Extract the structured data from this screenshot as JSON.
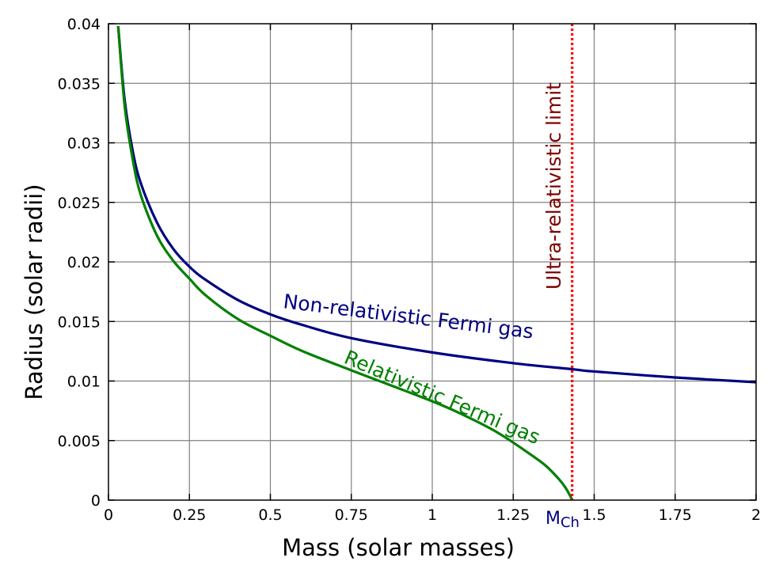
{
  "chart_data": {
    "type": "line",
    "xlabel": "Mass (solar masses)",
    "ylabel": "Radius (solar radii)",
    "xlim": [
      0,
      2
    ],
    "ylim": [
      0,
      0.04
    ],
    "x_ticks": [
      0,
      0.25,
      0.5,
      0.75,
      1,
      1.25,
      1.5,
      1.75,
      2
    ],
    "x_tick_labels": [
      "0",
      "0.25",
      "0.5",
      "0.75",
      "1",
      "1.25",
      "1.5",
      "1.75",
      "2"
    ],
    "y_ticks": [
      0,
      0.005,
      0.01,
      0.015,
      0.02,
      0.025,
      0.03,
      0.035,
      0.04
    ],
    "y_tick_labels": [
      "0",
      "0.005",
      "0.01",
      "0.015",
      "0.02",
      "0.025",
      "0.03",
      "0.035",
      "0.04"
    ],
    "grid": true,
    "series": [
      {
        "name": "Non-relativistic Fermi gas",
        "color": "#000080",
        "x": [
          0.03,
          0.05,
          0.075,
          0.1,
          0.15,
          0.2,
          0.25,
          0.3,
          0.4,
          0.5,
          0.6,
          0.75,
          1.0,
          1.25,
          1.43,
          1.5,
          1.75,
          2.0
        ],
        "y": [
          0.0398,
          0.0336,
          0.0293,
          0.0266,
          0.0233,
          0.0211,
          0.0196,
          0.0185,
          0.0168,
          0.0156,
          0.0147,
          0.0136,
          0.0124,
          0.0115,
          0.011,
          0.0108,
          0.0103,
          0.0099
        ]
      },
      {
        "name": "Relativistic Fermi gas",
        "color": "#008000",
        "x": [
          0.03,
          0.05,
          0.075,
          0.1,
          0.15,
          0.2,
          0.25,
          0.3,
          0.4,
          0.5,
          0.6,
          0.75,
          1.0,
          1.1,
          1.2,
          1.3,
          1.35,
          1.39,
          1.41,
          1.425,
          1.432
        ],
        "y": [
          0.0398,
          0.0331,
          0.0286,
          0.0256,
          0.0222,
          0.0201,
          0.0186,
          0.0172,
          0.0152,
          0.0138,
          0.0125,
          0.0109,
          0.0083,
          0.0071,
          0.0057,
          0.0039,
          0.0029,
          0.0018,
          0.0011,
          0.0004,
          0.0
        ]
      }
    ],
    "reference_line": {
      "name": "Ultra-relativistic limit",
      "x": 1.432,
      "color": "#ff0000",
      "style": "dotted",
      "label_color": "#800000"
    },
    "annotations": {
      "mch_main": "M",
      "mch_sub": "Ch",
      "mch_color": "#000080"
    }
  }
}
